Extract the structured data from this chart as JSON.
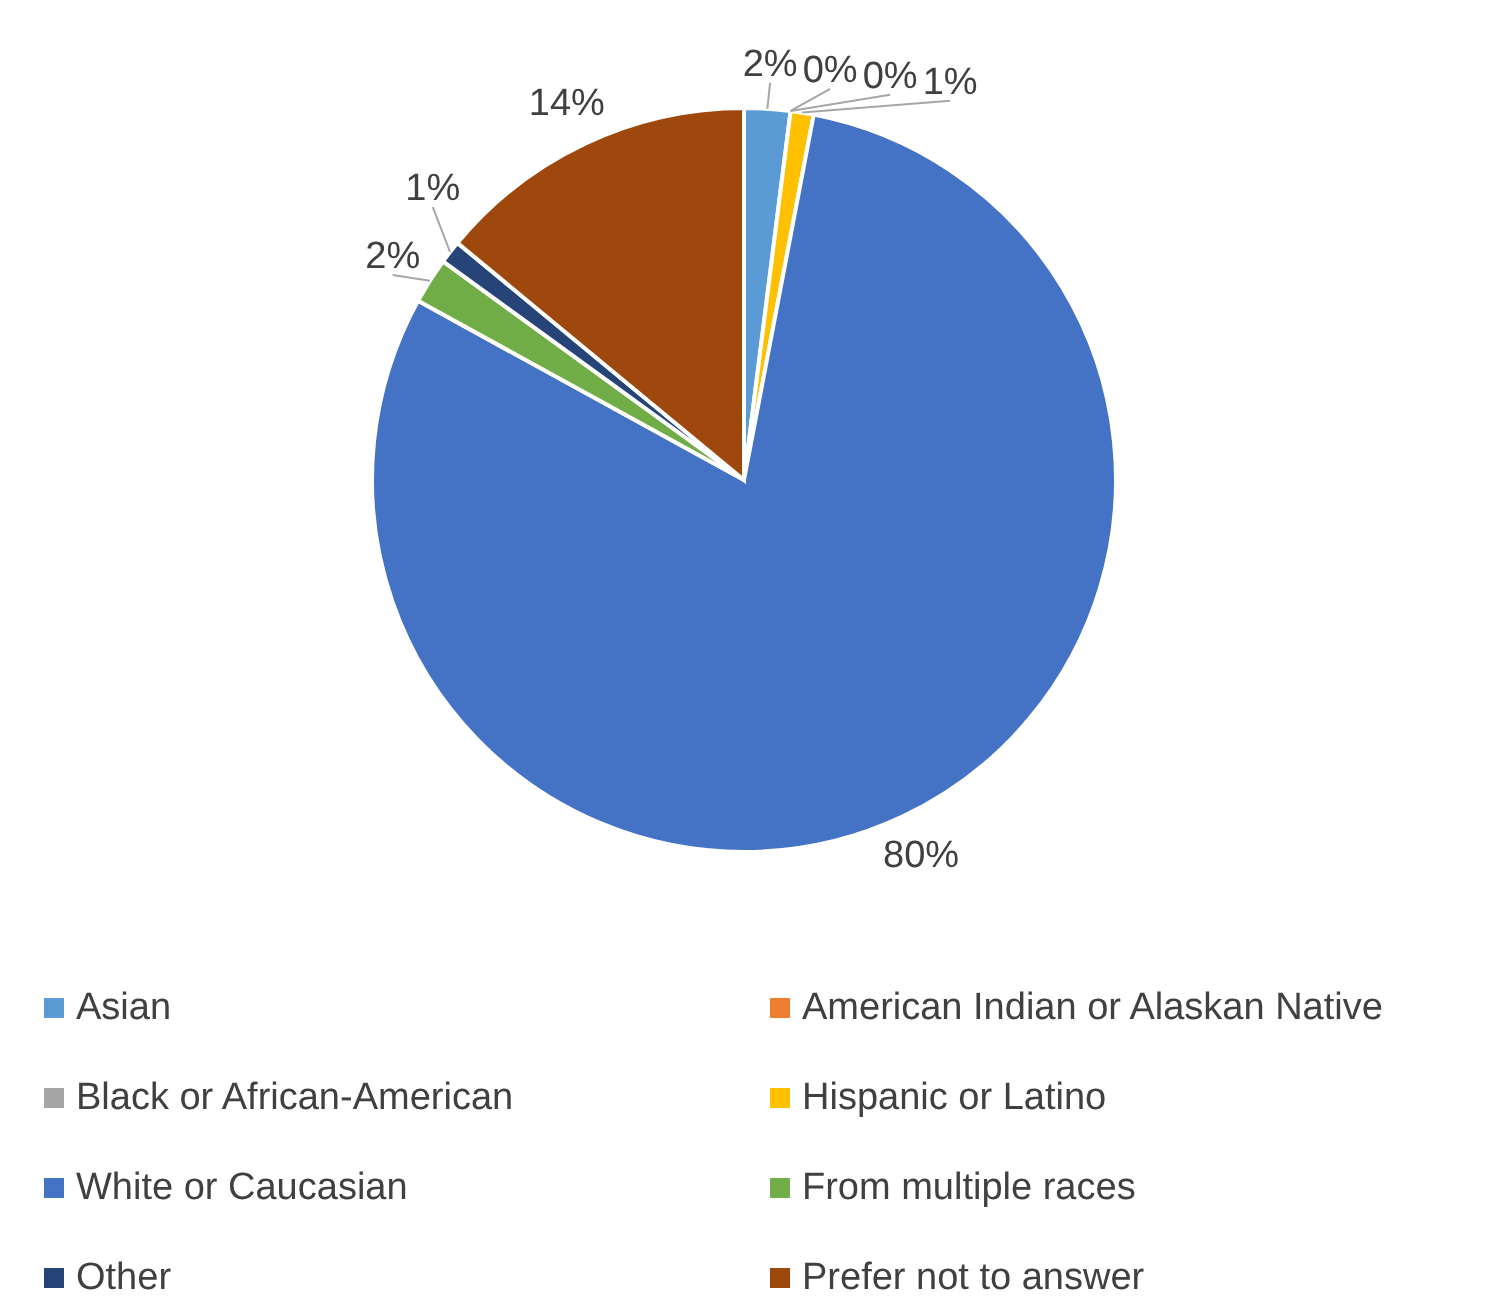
{
  "chart_data": {
    "type": "pie",
    "categories": [
      "Asian",
      "American Indian or Alaskan Native",
      "Black or African-American",
      "Hispanic or Latino",
      "White or Caucasian",
      "From multiple races",
      "Other",
      "Prefer not to answer"
    ],
    "values": [
      2,
      0,
      0,
      1,
      80,
      2,
      1,
      14
    ],
    "colors": [
      "#5b9bd5",
      "#ed7d31",
      "#a5a5a5",
      "#ffc000",
      "#4472c4",
      "#70ad47",
      "#264478",
      "#9e480e"
    ],
    "value_labels": [
      "2%",
      "0%",
      "0%",
      "1%",
      "80%",
      "2%",
      "1%",
      "14%"
    ],
    "legend": "bottom"
  }
}
